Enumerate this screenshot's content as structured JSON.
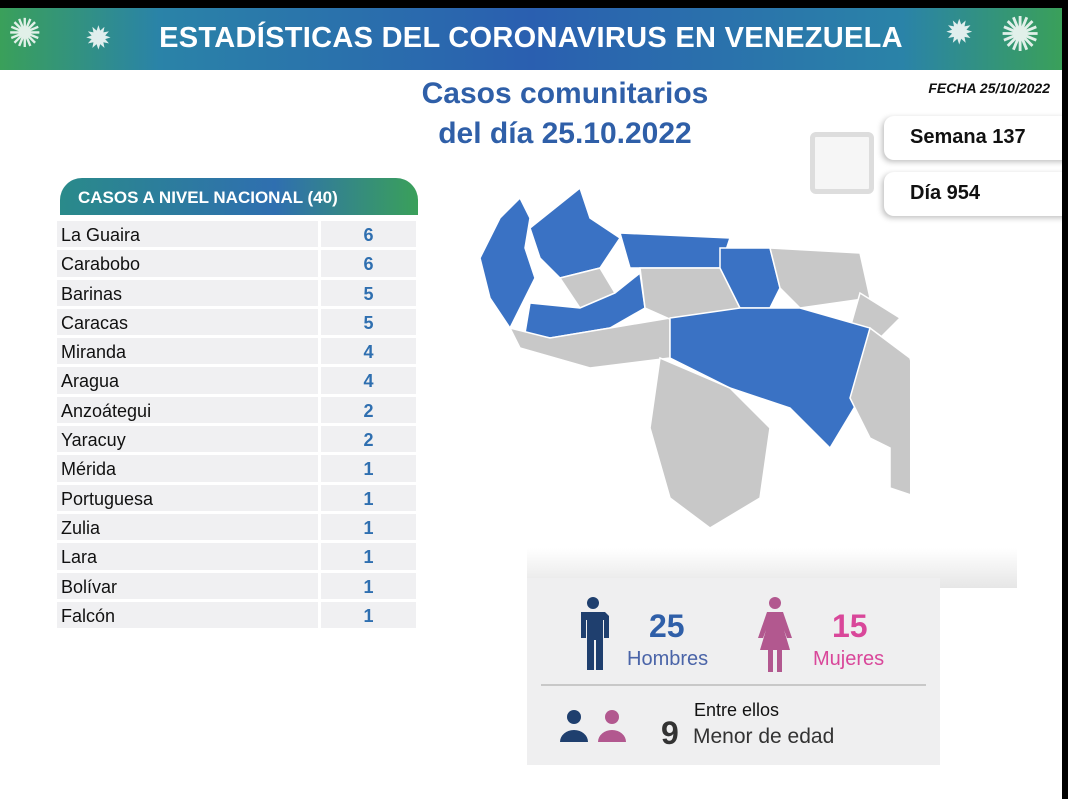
{
  "banner": {
    "title": "ESTADÍSTICAS DEL CORONAVIRUS EN VENEZUELA"
  },
  "subtitle": {
    "line1": "Casos comunitarios",
    "line2": "del día 25.10.2022"
  },
  "fecha": "FECHA 25/10/2022",
  "semana": "Semana 137",
  "dia": "Día 954",
  "table": {
    "header": "CASOS A NIVEL NACIONAL  (40)",
    "rows": [
      {
        "state": "La Guaira",
        "cases": "6"
      },
      {
        "state": "Carabobo",
        "cases": "6"
      },
      {
        "state": "Barinas",
        "cases": "5"
      },
      {
        "state": "Caracas",
        "cases": "5"
      },
      {
        "state": "Miranda",
        "cases": "4"
      },
      {
        "state": "Aragua",
        "cases": "4"
      },
      {
        "state": "Anzoátegui",
        "cases": "2"
      },
      {
        "state": "Yaracuy",
        "cases": "2"
      },
      {
        "state": "Mérida",
        "cases": "1"
      },
      {
        "state": "Portuguesa",
        "cases": "1"
      },
      {
        "state": "Zulia",
        "cases": "1"
      },
      {
        "state": "Lara",
        "cases": "1"
      },
      {
        "state": "Bolívar",
        "cases": "1"
      },
      {
        "state": "Falcón",
        "cases": "1"
      }
    ]
  },
  "stats": {
    "men_count": "25",
    "men_label": "Hombres",
    "women_count": "15",
    "women_label": "Mujeres",
    "minors_intro": "Entre ellos",
    "minors_count": "9",
    "minors_label": "Menor de edad"
  },
  "colors": {
    "affected": "#3a72c4",
    "unaffected": "#c8c8c8",
    "men": "#1f3f6e",
    "women": "#b2588f",
    "women_text": "#d9479a",
    "men_text": "#2f5fa8"
  }
}
